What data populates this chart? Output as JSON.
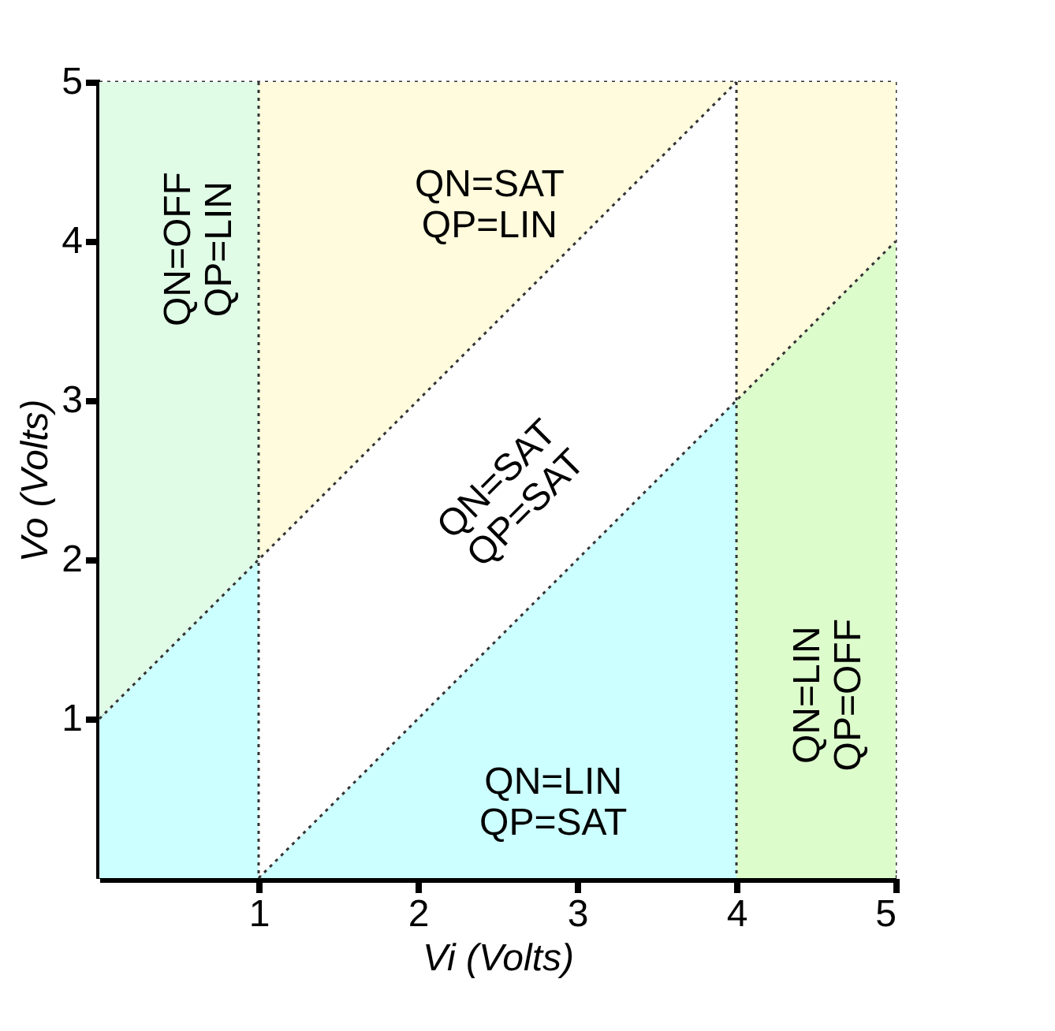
{
  "chart_data": {
    "type": "area",
    "stacked": true,
    "xlabel": "Vi (Volts)",
    "ylabel": "Vo (Volts)",
    "x": [
      0,
      1,
      1,
      4,
      4,
      5
    ],
    "series": [
      {
        "color": "#ccffff",
        "values": [
          1,
          2,
          0,
          3,
          null,
          null
        ]
      },
      {
        "color": "#ddfccc",
        "values": [
          null,
          null,
          null,
          null,
          3,
          4
        ]
      },
      {
        "color": "#e0fce6",
        "values": [
          4,
          3,
          null,
          null,
          null,
          null
        ]
      },
      {
        "color": "#ffffff",
        "values": [
          null,
          null,
          2,
          2,
          null,
          null
        ]
      },
      {
        "color": "#fffbdc",
        "values": [
          null,
          null,
          3,
          0,
          2,
          1
        ]
      },
      {
        "type": "line",
        "color": "#333333",
        "line_style": "dotted",
        "x": [
          0,
          4
        ],
        "values": [
          1,
          5
        ]
      },
      {
        "type": "line",
        "color": "#333333",
        "line_style": "dotted",
        "x": [
          1,
          5
        ],
        "values": [
          0,
          4
        ]
      }
    ],
    "xlim": [
      0,
      5
    ],
    "ylim": [
      0,
      5
    ],
    "xticks": [
      1,
      2,
      3,
      4,
      5
    ],
    "yticks": [
      1,
      2,
      3,
      4,
      5
    ],
    "grid": false,
    "ref_lines": [
      {
        "axis": "x",
        "value": 1,
        "color": "#333333",
        "line_style": "dotted"
      },
      {
        "axis": "x",
        "value": 4,
        "color": "#333333",
        "line_style": "dotted"
      }
    ],
    "annotations": [
      "QN=SAT\nQP=LIN",
      "QN=OFF\nQP=LIN",
      "QN=SAT\nQP=SAT",
      "QN=LIN\nQP=SAT",
      "QN=LIN\nQP=OFF"
    ]
  }
}
